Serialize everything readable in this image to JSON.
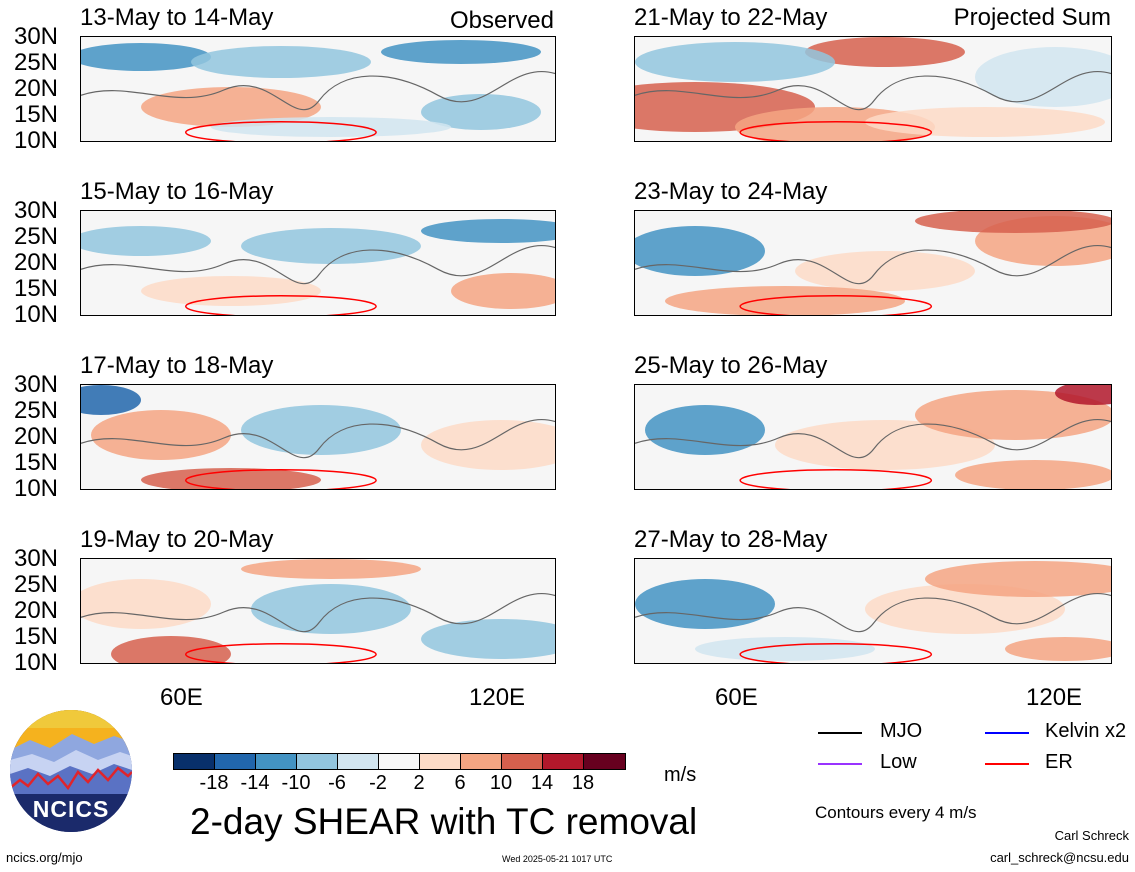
{
  "panels": [
    {
      "date_range": "13-May to 14-May",
      "corner_label": "Observed"
    },
    {
      "date_range": "21-May to 22-May",
      "corner_label": "Projected Sum"
    },
    {
      "date_range": "15-May to 16-May",
      "corner_label": ""
    },
    {
      "date_range": "23-May to 24-May",
      "corner_label": ""
    },
    {
      "date_range": "17-May to 18-May",
      "corner_label": ""
    },
    {
      "date_range": "25-May to 26-May",
      "corner_label": ""
    },
    {
      "date_range": "19-May to 20-May",
      "corner_label": ""
    },
    {
      "date_range": "27-May to 28-May",
      "corner_label": ""
    }
  ],
  "lat_ticks": [
    "30N",
    "25N",
    "20N",
    "15N",
    "10N"
  ],
  "lon_ticks": [
    "60E",
    "120E"
  ],
  "colorbar": {
    "colors": [
      "#08306b",
      "#2166ac",
      "#4393c3",
      "#92c5de",
      "#d1e5f0",
      "#f7f7f7",
      "#fddbc7",
      "#f4a582",
      "#d6604d",
      "#b2182b",
      "#67001f"
    ],
    "labels": [
      "-18",
      "-14",
      "-10",
      "-6",
      "-2",
      "2",
      "6",
      "10",
      "14",
      "18"
    ],
    "units": "m/s"
  },
  "title": "2-day SHEAR with TC removal",
  "legend": [
    {
      "label": "MJO",
      "color": "#000000"
    },
    {
      "label": "Kelvin x2",
      "color": "#0000ff"
    },
    {
      "label": "Low",
      "color": "#9933ff"
    },
    {
      "label": "ER",
      "color": "#ff0000"
    }
  ],
  "contours_note": "Contours every 4 m/s",
  "author": "Carl Schreck",
  "email": "carl_schreck@ncsu.edu",
  "site": "ncics.org/mjo",
  "timestamp": "Wed 2025-05-21 1017 UTC",
  "logo_text": "NCICS"
}
